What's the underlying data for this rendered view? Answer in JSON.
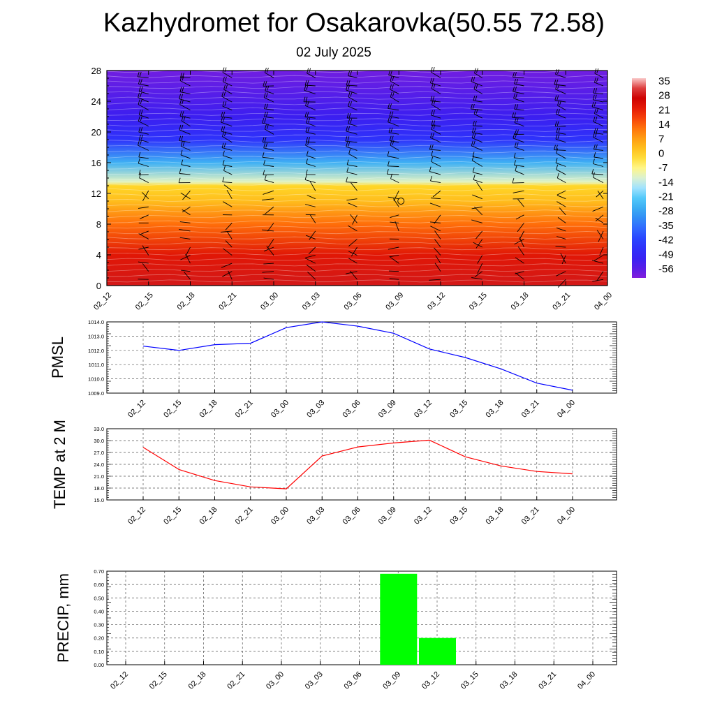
{
  "title": "Kazhydromet for Osakarovka(50.55 72.58)",
  "subtitle": "02 July 2025",
  "time_labels": [
    "02_12",
    "02_15",
    "02_18",
    "02_21",
    "03_00",
    "03_03",
    "03_06",
    "03_09",
    "03_12",
    "03_15",
    "03_18",
    "03_21",
    "04_00"
  ],
  "chart_data": [
    {
      "type": "heatmap",
      "name": "temperature-height-section",
      "x": [
        "02_12",
        "02_15",
        "02_18",
        "02_21",
        "03_00",
        "03_03",
        "03_06",
        "03_09",
        "03_12",
        "03_15",
        "03_18",
        "03_21",
        "04_00"
      ],
      "y_ticks": [
        0,
        4,
        8,
        12,
        16,
        20,
        24,
        28
      ],
      "ylim": [
        0,
        28
      ],
      "colorbar_labels": [
        "35",
        "28",
        "21",
        "14",
        "7",
        "0",
        "-7",
        "-14",
        "-21",
        "-28",
        "-35",
        "-42",
        "-49",
        "-56"
      ],
      "colorbar_range": [
        -60,
        38
      ],
      "profile": [
        {
          "height": 0,
          "temp": 30
        },
        {
          "height": 4,
          "temp": 24
        },
        {
          "height": 8,
          "temp": 14
        },
        {
          "height": 11,
          "temp": 4
        },
        {
          "height": 13,
          "temp": 0
        },
        {
          "height": 13.5,
          "temp": -10
        },
        {
          "height": 16,
          "temp": -25
        },
        {
          "height": 19,
          "temp": -45
        },
        {
          "height": 22,
          "temp": -52
        },
        {
          "height": 28,
          "temp": -58
        }
      ],
      "overlay": "wind barbs",
      "grid": false
    },
    {
      "type": "line",
      "name": "pmsl",
      "ylabel": "PMSL",
      "x": [
        "02_12",
        "02_15",
        "02_18",
        "02_21",
        "03_00",
        "03_03",
        "03_06",
        "03_09",
        "03_12",
        "03_15",
        "03_18",
        "03_21",
        "04_00"
      ],
      "series": [
        {
          "values": [
            1012.3,
            1012.0,
            1012.4,
            1012.5,
            1013.6,
            1014.0,
            1013.7,
            1013.2,
            1012.1,
            1011.5,
            1010.7,
            1009.7,
            1009.2
          ]
        }
      ],
      "y_ticks": [
        "1009.0",
        "1010.0",
        "1011.0",
        "1012.0",
        "1013.0",
        "1014.0"
      ],
      "ylim": [
        1009.0,
        1014.0
      ],
      "color": "#0000ff",
      "grid": true
    },
    {
      "type": "line",
      "name": "temp-2m",
      "ylabel": "TEMP at 2 M",
      "x": [
        "02_12",
        "02_15",
        "02_18",
        "02_21",
        "03_00",
        "03_03",
        "03_06",
        "03_09",
        "03_12",
        "03_15",
        "03_18",
        "03_21",
        "04_00"
      ],
      "series": [
        {
          "values": [
            28.3,
            22.7,
            19.9,
            18.3,
            17.8,
            26.1,
            28.4,
            29.4,
            30.1,
            25.9,
            23.6,
            22.2,
            21.6
          ]
        }
      ],
      "y_ticks": [
        "15.0",
        "18.0",
        "21.0",
        "24.0",
        "27.0",
        "30.0",
        "33.0"
      ],
      "ylim": [
        15.0,
        33.0
      ],
      "color": "#ff0000",
      "grid": true
    },
    {
      "type": "bar",
      "name": "precipitation",
      "ylabel": "PRECIP, mm",
      "categories": [
        "02_12",
        "02_15",
        "02_18",
        "02_21",
        "03_00",
        "03_03",
        "03_06",
        "03_09",
        "03_12",
        "03_15",
        "03_18",
        "03_21",
        "04_00"
      ],
      "series": [
        {
          "values": [
            0,
            0,
            0,
            0,
            0,
            0,
            0,
            0.68,
            0.2,
            0,
            0,
            0,
            0
          ]
        }
      ],
      "y_ticks": [
        "0.00",
        "0.10",
        "0.20",
        "0.30",
        "0.40",
        "0.50",
        "0.60",
        "0.70"
      ],
      "ylim": [
        0,
        0.7
      ],
      "color": "#00ff00",
      "grid": true
    }
  ]
}
